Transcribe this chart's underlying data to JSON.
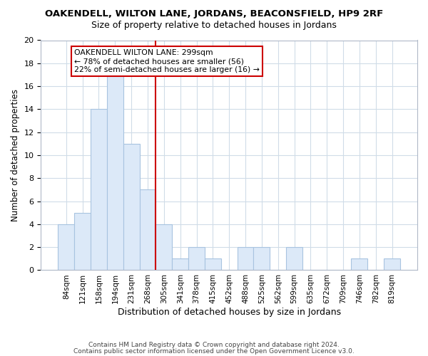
{
  "title": "OAKENDELL, WILTON LANE, JORDANS, BEACONSFIELD, HP9 2RF",
  "subtitle": "Size of property relative to detached houses in Jordans",
  "xlabel": "Distribution of detached houses by size in Jordans",
  "ylabel": "Number of detached properties",
  "bar_labels": [
    "84sqm",
    "121sqm",
    "158sqm",
    "194sqm",
    "231sqm",
    "268sqm",
    "305sqm",
    "341sqm",
    "378sqm",
    "415sqm",
    "452sqm",
    "488sqm",
    "525sqm",
    "562sqm",
    "599sqm",
    "635sqm",
    "672sqm",
    "709sqm",
    "746sqm",
    "782sqm",
    "819sqm"
  ],
  "bar_heights": [
    4,
    5,
    14,
    17,
    11,
    7,
    4,
    1,
    2,
    1,
    0,
    2,
    2,
    0,
    2,
    0,
    0,
    0,
    1,
    0,
    1
  ],
  "bar_color": "#dce9f8",
  "bar_edge_color": "#a8c4e0",
  "vline_color": "#cc0000",
  "ylim": [
    0,
    20
  ],
  "yticks": [
    0,
    2,
    4,
    6,
    8,
    10,
    12,
    14,
    16,
    18,
    20
  ],
  "annotation_title": "OAKENDELL WILTON LANE: 299sqm",
  "annotation_line1": "← 78% of detached houses are smaller (56)",
  "annotation_line2": "22% of semi-detached houses are larger (16) →",
  "annotation_box_color": "#ffffff",
  "annotation_box_edge": "#cc0000",
  "footer1": "Contains HM Land Registry data © Crown copyright and database right 2024.",
  "footer2": "Contains public sector information licensed under the Open Government Licence v3.0.",
  "background_color": "#ffffff",
  "grid_color": "#d0dce8"
}
